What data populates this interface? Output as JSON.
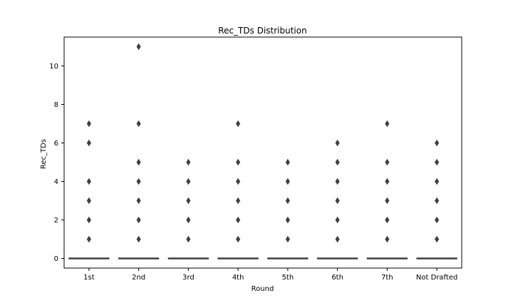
{
  "chart_data": {
    "type": "box",
    "title": "Rec_TDs Distribution",
    "xlabel": "Round",
    "ylabel": "Rec_TDs",
    "categories": [
      "1st",
      "2nd",
      "3rd",
      "4th",
      "5th",
      "6th",
      "7th",
      "Not Drafted"
    ],
    "ylim": [
      -0.5,
      11.5
    ],
    "yticks": [
      0,
      2,
      4,
      6,
      8,
      10
    ],
    "grid": false,
    "legend": "none",
    "series": [
      {
        "category": "1st",
        "q1": 0,
        "median": 0,
        "q3": 0,
        "whisker_low": 0,
        "whisker_high": 0,
        "outliers": [
          1,
          2,
          3,
          4,
          6,
          7
        ]
      },
      {
        "category": "2nd",
        "q1": 0,
        "median": 0,
        "q3": 0,
        "whisker_low": 0,
        "whisker_high": 0,
        "outliers": [
          1,
          2,
          3,
          4,
          5,
          7,
          11
        ]
      },
      {
        "category": "3rd",
        "q1": 0,
        "median": 0,
        "q3": 0,
        "whisker_low": 0,
        "whisker_high": 0,
        "outliers": [
          1,
          2,
          3,
          4,
          5
        ]
      },
      {
        "category": "4th",
        "q1": 0,
        "median": 0,
        "q3": 0,
        "whisker_low": 0,
        "whisker_high": 0,
        "outliers": [
          1,
          2,
          3,
          4,
          5,
          7
        ]
      },
      {
        "category": "5th",
        "q1": 0,
        "median": 0,
        "q3": 0,
        "whisker_low": 0,
        "whisker_high": 0,
        "outliers": [
          1,
          2,
          3,
          4,
          5
        ]
      },
      {
        "category": "6th",
        "q1": 0,
        "median": 0,
        "q3": 0,
        "whisker_low": 0,
        "whisker_high": 0,
        "outliers": [
          1,
          2,
          3,
          4,
          5,
          6
        ]
      },
      {
        "category": "7th",
        "q1": 0,
        "median": 0,
        "q3": 0,
        "whisker_low": 0,
        "whisker_high": 0,
        "outliers": [
          1,
          2,
          3,
          4,
          5,
          7
        ]
      },
      {
        "category": "Not Drafted",
        "q1": 0,
        "median": 0,
        "q3": 0,
        "whisker_low": 0,
        "whisker_high": 0,
        "outliers": [
          1,
          2,
          3,
          4,
          5,
          6
        ]
      }
    ],
    "colors": {
      "box_line": "#3f3f3f",
      "outlier_fill": "#3f3f3f",
      "axis": "#000000",
      "background": "#ffffff"
    }
  }
}
